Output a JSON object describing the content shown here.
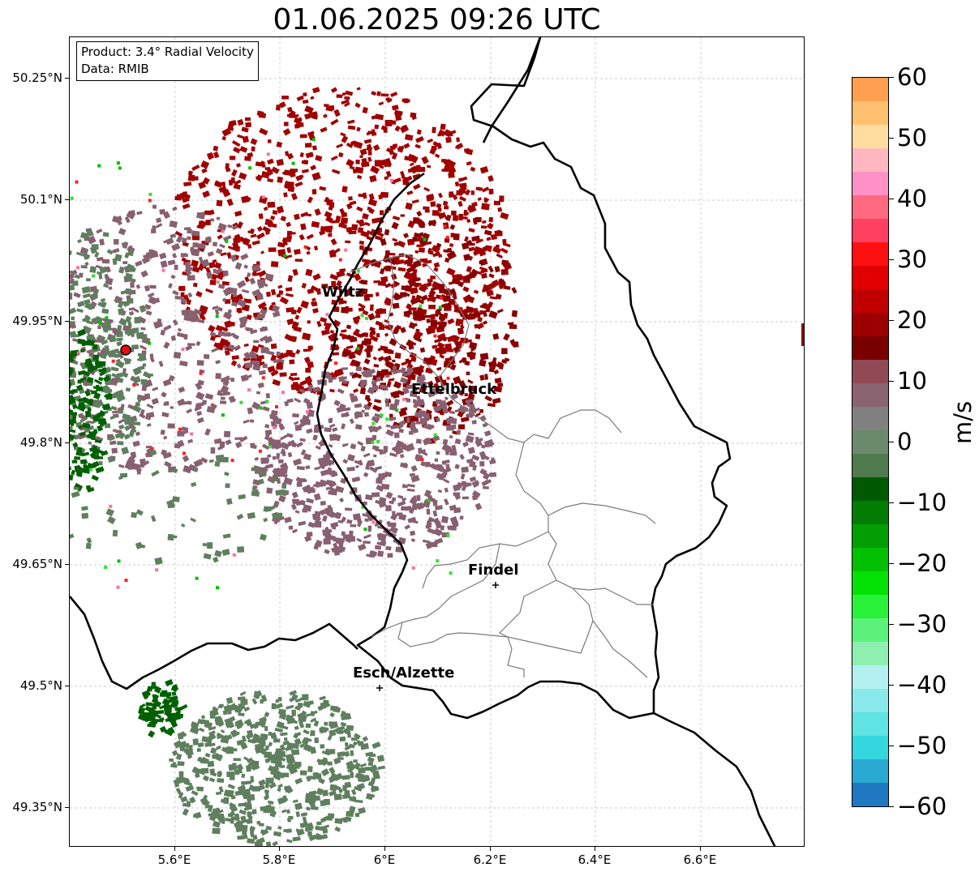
{
  "title": "01.06.2025 09:26 UTC",
  "info": {
    "product": "Product: 3.4° Radial Velocity",
    "source": "Data: RMIB"
  },
  "axes": {
    "lat_labels": [
      "50.25°N",
      "50.1°N",
      "49.95°N",
      "49.8°N",
      "49.65°N",
      "49.5°N",
      "49.35°N"
    ],
    "lon_labels": [
      "5.6°E",
      "5.8°E",
      "6°E",
      "6.2°E",
      "6.4°E",
      "6.6°E"
    ]
  },
  "cities": [
    {
      "name": "Wiltz"
    },
    {
      "name": "Ettelbruck"
    },
    {
      "name": "Findel"
    },
    {
      "name": "Esch/Alzette"
    }
  ],
  "colorbar": {
    "unit": "m/s",
    "min": -60,
    "max": 60,
    "tick_labels": [
      "60",
      "50",
      "40",
      "30",
      "20",
      "10",
      "0",
      "−10",
      "−20",
      "−30",
      "−40",
      "−50",
      "−60"
    ],
    "colors": [
      "#1f78c1",
      "#2aa9d2",
      "#33d7dd",
      "#5fe3e3",
      "#8ae9ea",
      "#b4f0f0",
      "#8ef0b0",
      "#5cf27a",
      "#29f23b",
      "#04e104",
      "#03c003",
      "#039e03",
      "#027c02",
      "#015a01",
      "#4e7a4e",
      "#6b8a6b",
      "#808080",
      "#8a6470",
      "#904a55",
      "#7a0000",
      "#9c0000",
      "#c00000",
      "#e00000",
      "#ff1010",
      "#ff4060",
      "#ff6a80",
      "#ff90c8",
      "#ffb8c0",
      "#ffdca0",
      "#ffc070",
      "#ffa050"
    ]
  },
  "colors": {
    "strong_incoming": "#a00000",
    "weak_incoming": "#886070",
    "weak_outgoing": "#5f7f5f",
    "strong_outgoing": "#006000",
    "radar_marker": "#e01010"
  }
}
